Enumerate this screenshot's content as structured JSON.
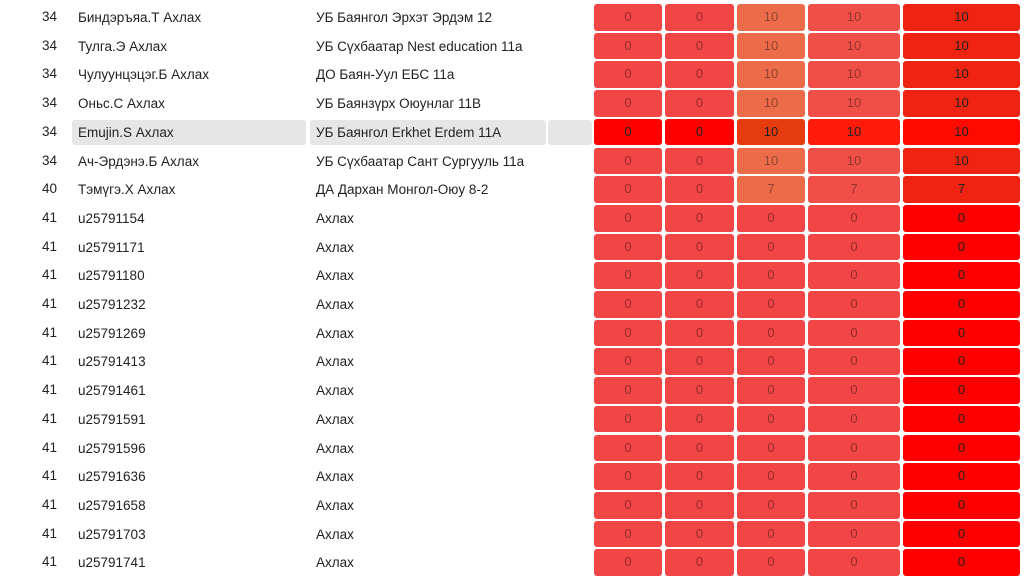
{
  "rows": [
    {
      "rank": "34",
      "name": "Биндэръяа.Т Ахлах",
      "school": "УБ Баянгол Эрхэт Эрдэм 12",
      "scores": [
        "0",
        "0",
        "10",
        "10"
      ],
      "total": "10"
    },
    {
      "rank": "34",
      "name": "Тулга.Э Ахлах",
      "school": "УБ Сүхбаатар Nest education 11а",
      "scores": [
        "0",
        "0",
        "10",
        "10"
      ],
      "total": "10"
    },
    {
      "rank": "34",
      "name": "Чулуунцэцэг.Б Ахлах",
      "school": "ДО Баян-Уул ЕБС 11а",
      "scores": [
        "0",
        "0",
        "10",
        "10"
      ],
      "total": "10"
    },
    {
      "rank": "34",
      "name": "Оньс.С Ахлах",
      "school": "УБ Баянзүрх Оюунлаг 11В",
      "scores": [
        "0",
        "0",
        "10",
        "10"
      ],
      "total": "10"
    },
    {
      "rank": "34",
      "name": "Emujin.S Ахлах",
      "school": "УБ Баянгол Erkhet Erdem 11A",
      "scores": [
        "0",
        "0",
        "10",
        "10"
      ],
      "total": "10",
      "highlighted": true
    },
    {
      "rank": "34",
      "name": "Ач-Эрдэнэ.Б Ахлах",
      "school": "УБ Сүхбаатар Сант Сургууль 11а",
      "scores": [
        "0",
        "0",
        "10",
        "10"
      ],
      "total": "10"
    },
    {
      "rank": "40",
      "name": "Тэмүгэ.Х Ахлах",
      "school": "ДА Дархан Монгол-Оюу 8-2",
      "scores": [
        "0",
        "0",
        "7",
        "7"
      ],
      "total": "7"
    },
    {
      "rank": "41",
      "name": "u25791154",
      "school": "Ахлах",
      "scores": [
        "0",
        "0",
        "0",
        "0"
      ],
      "total": "0"
    },
    {
      "rank": "41",
      "name": "u25791171",
      "school": "Ахлах",
      "scores": [
        "0",
        "0",
        "0",
        "0"
      ],
      "total": "0"
    },
    {
      "rank": "41",
      "name": "u25791180",
      "school": "Ахлах",
      "scores": [
        "0",
        "0",
        "0",
        "0"
      ],
      "total": "0"
    },
    {
      "rank": "41",
      "name": "u25791232",
      "school": "Ахлах",
      "scores": [
        "0",
        "0",
        "0",
        "0"
      ],
      "total": "0"
    },
    {
      "rank": "41",
      "name": "u25791269",
      "school": "Ахлах",
      "scores": [
        "0",
        "0",
        "0",
        "0"
      ],
      "total": "0"
    },
    {
      "rank": "41",
      "name": "u25791413",
      "school": "Ахлах",
      "scores": [
        "0",
        "0",
        "0",
        "0"
      ],
      "total": "0"
    },
    {
      "rank": "41",
      "name": "u25791461",
      "school": "Ахлах",
      "scores": [
        "0",
        "0",
        "0",
        "0"
      ],
      "total": "0"
    },
    {
      "rank": "41",
      "name": "u25791591",
      "school": "Ахлах",
      "scores": [
        "0",
        "0",
        "0",
        "0"
      ],
      "total": "0"
    },
    {
      "rank": "41",
      "name": "u25791596",
      "school": "Ахлах",
      "scores": [
        "0",
        "0",
        "0",
        "0"
      ],
      "total": "0"
    },
    {
      "rank": "41",
      "name": "u25791636",
      "school": "Ахлах",
      "scores": [
        "0",
        "0",
        "0",
        "0"
      ],
      "total": "0"
    },
    {
      "rank": "41",
      "name": "u25791658",
      "school": "Ахлах",
      "scores": [
        "0",
        "0",
        "0",
        "0"
      ],
      "total": "0"
    },
    {
      "rank": "41",
      "name": "u25791703",
      "school": "Ахлах",
      "scores": [
        "0",
        "0",
        "0",
        "0"
      ],
      "total": "0"
    },
    {
      "rank": "41",
      "name": "u25791741",
      "school": "Ахлах",
      "scores": [
        "0",
        "0",
        "0",
        "0"
      ],
      "total": "0"
    }
  ]
}
